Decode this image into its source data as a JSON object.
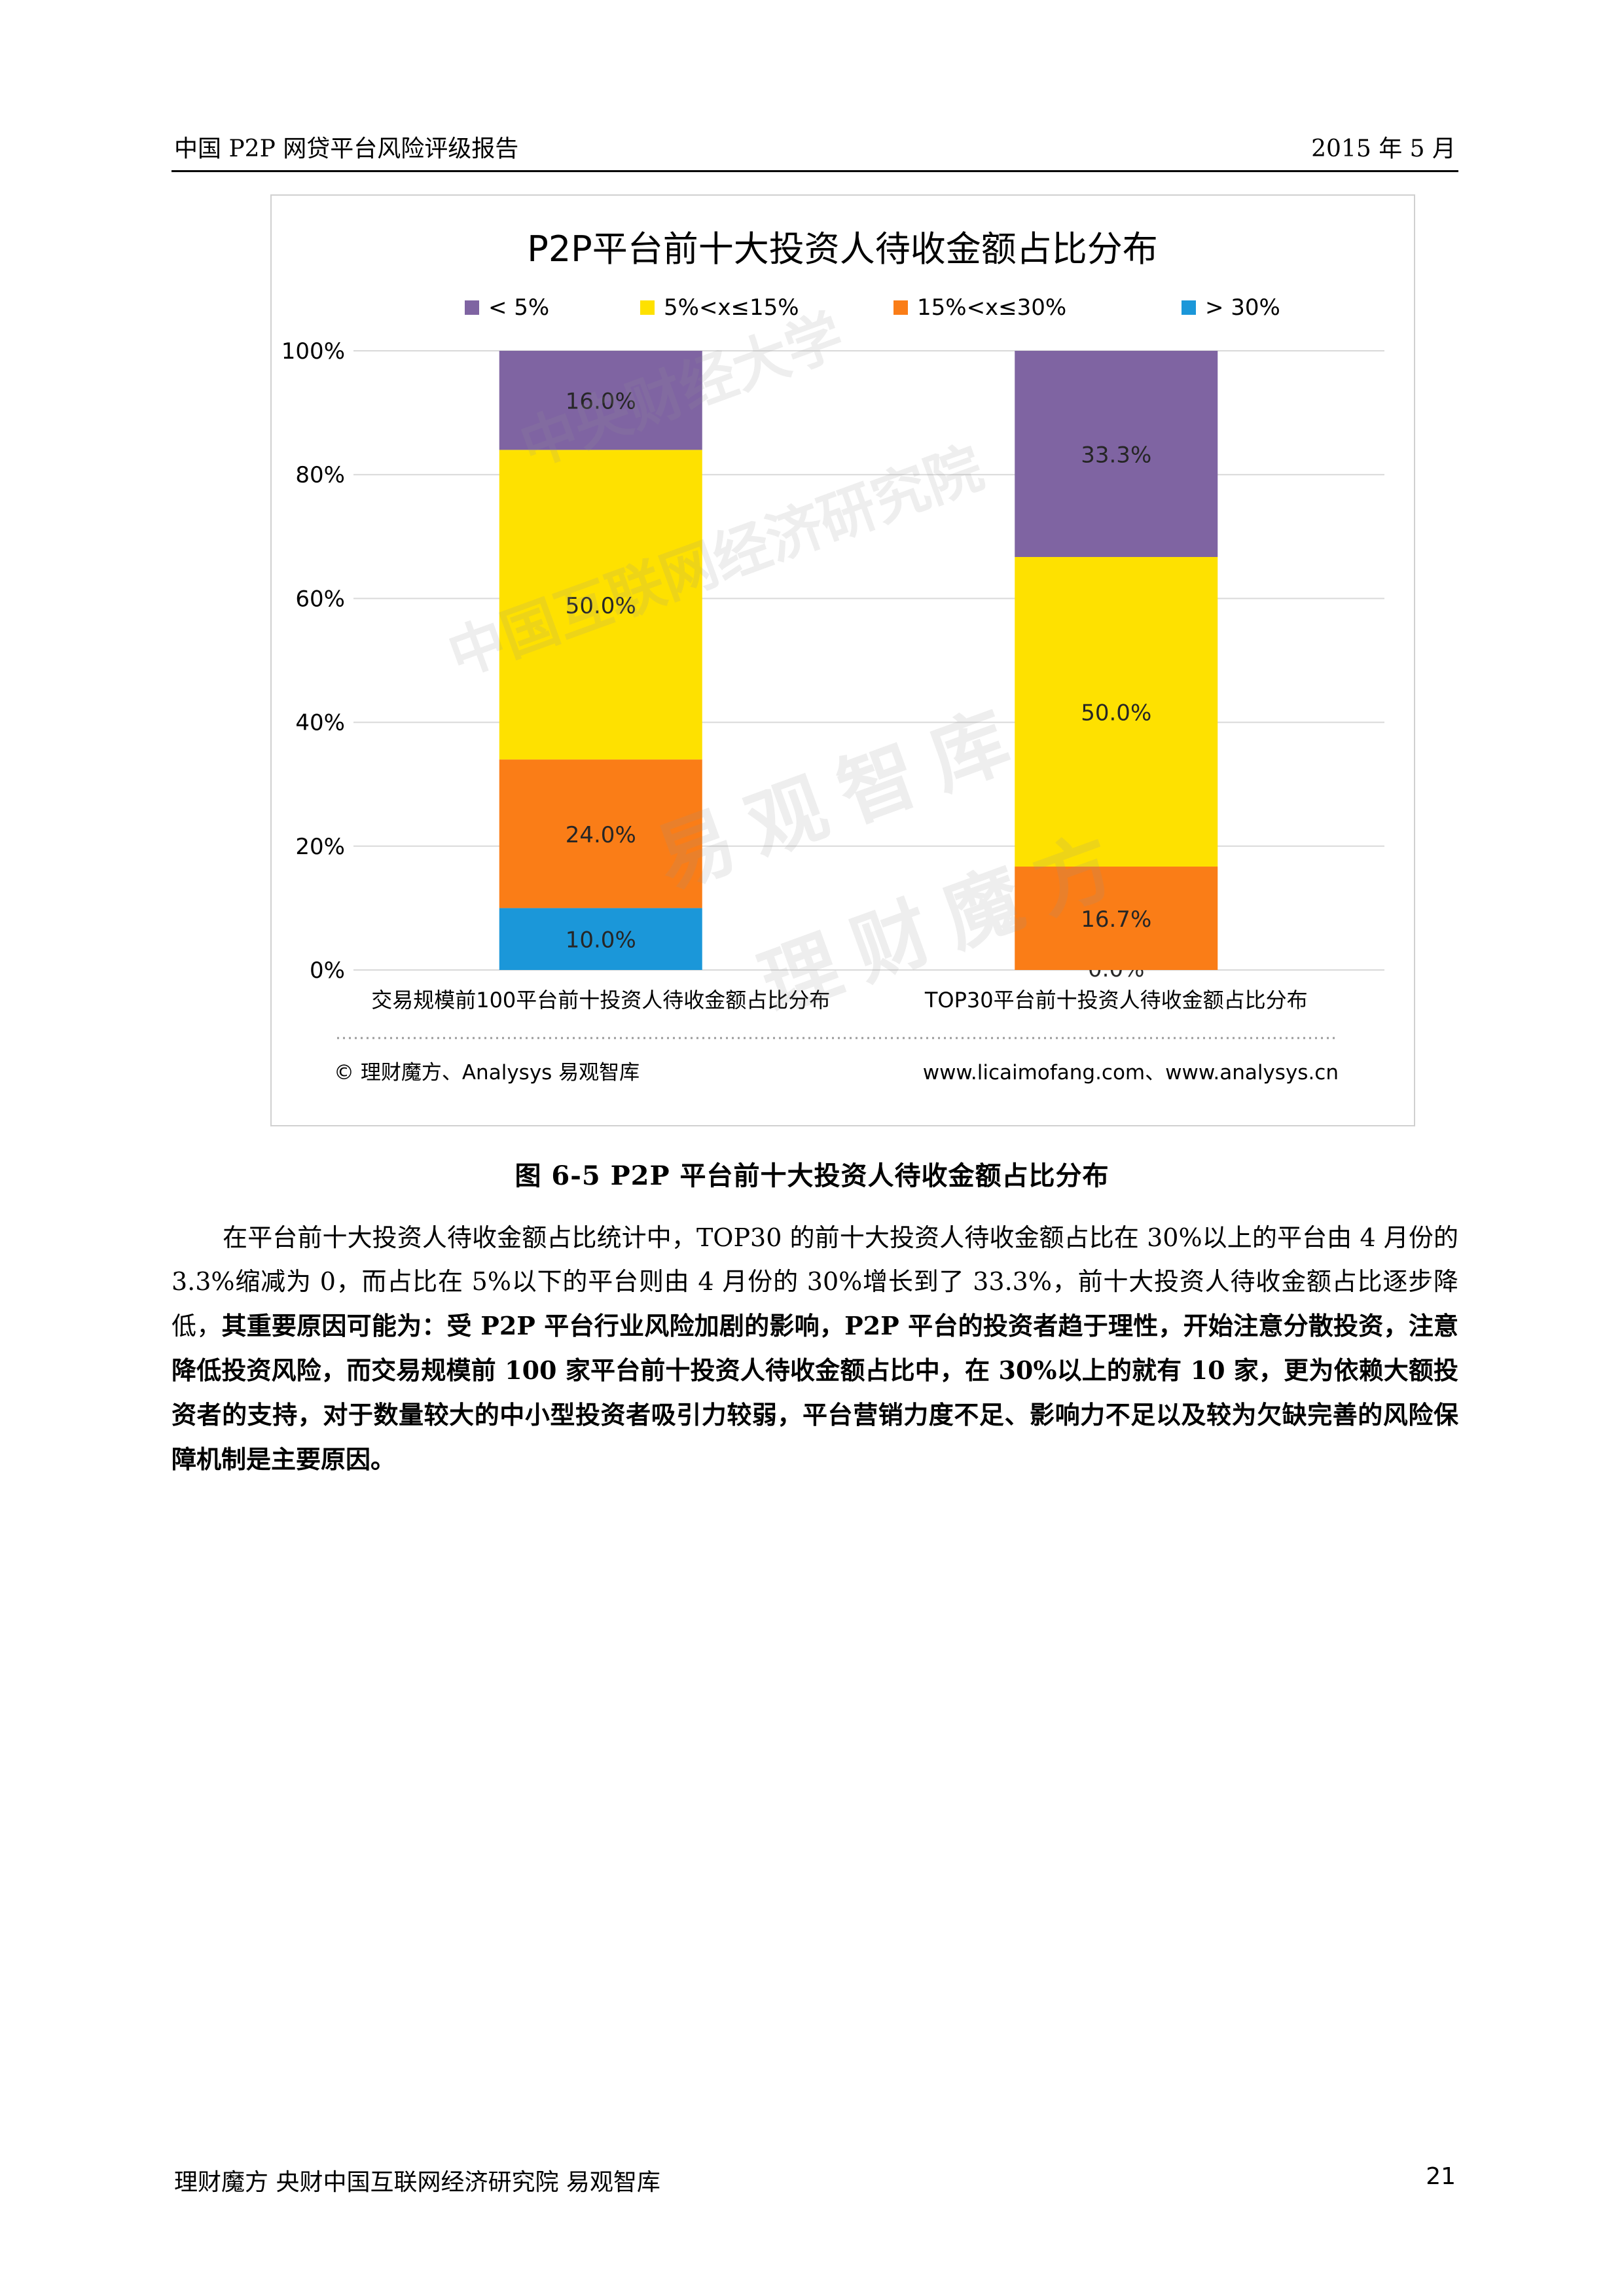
{
  "header": {
    "title": "中国 P2P 网贷平台风险评级报告",
    "date": "2015 年 5 月"
  },
  "chart_data": {
    "type": "bar",
    "stacked": true,
    "percent": true,
    "title": "P2P平台前十大投资人待收金额占比分布",
    "legend_position": "top",
    "categories": [
      "交易规模前100平台前十投资人待收金额占比分布",
      "TOP30平台前十投资人待收金额占比分布"
    ],
    "series": [
      {
        "name": "> 30%",
        "color": "#1B97D9",
        "values": [
          10.0,
          0.0
        ],
        "labels": [
          "10.0%",
          "0.0%"
        ]
      },
      {
        "name": "15%<x≤30%",
        "color": "#FA7D17",
        "values": [
          24.0,
          16.7
        ],
        "labels": [
          "24.0%",
          "16.7%"
        ]
      },
      {
        "name": "5%<x≤15%",
        "color": "#FEE100",
        "values": [
          50.0,
          50.0
        ],
        "labels": [
          "50.0%",
          "50.0%"
        ]
      },
      {
        "name": "< 5%",
        "color": "#7F64A2",
        "values": [
          16.0,
          33.3
        ],
        "labels": [
          "16.0%",
          "33.3%"
        ]
      }
    ],
    "legend_order": [
      "< 5%",
      "5%<x≤15%",
      "15%<x≤30%",
      "> 30%"
    ],
    "ylim": [
      0,
      100
    ],
    "yticks": [
      "0%",
      "20%",
      "40%",
      "60%",
      "80%",
      "100%"
    ],
    "grid": true,
    "source_left": "© 理财魔方、Analysys 易观智库",
    "source_right": "www.licaimofang.com、www.analysys.cn"
  },
  "watermark": {
    "lines": [
      "中央财经大学",
      "中国互联网经济研究院",
      "易观智库",
      "理财魔方"
    ]
  },
  "caption": "图  6-5    P2P 平台前十大投资人待收金额占比分布",
  "paragraph": {
    "normal": "在平台前十大投资人待收金额占比统计中，TOP30 的前十大投资人待收金额占比在 30%以上的平台由 4 月份的 3.3%缩减为 0，而占比在 5%以下的平台则由 4 月份的 30%增长到了 33.3%，前十大投资人待收金额占比逐步降低，",
    "bold": "其重要原因可能为：受 P2P 平台行业风险加剧的影响，P2P 平台的投资者趋于理性，开始注意分散投资，注意降低投资风险，而交易规模前 100 家平台前十投资人待收金额占比中，在 30%以上的就有 10 家，更为依赖大额投资者的支持，对于数量较大的中小型投资者吸引力较弱，平台营销力度不足、影响力不足以及较为欠缺完善的风险保障机制是主要原因。"
  },
  "footer": {
    "text": "理财魔方  央财中国互联网经济研究院  易观智库",
    "page": "21"
  }
}
